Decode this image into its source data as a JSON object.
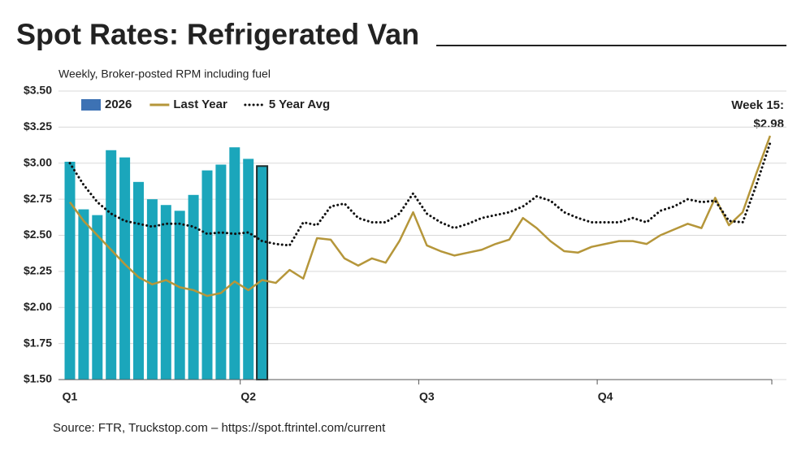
{
  "chart_data": {
    "type": "bar",
    "title": "Spot Rates: Refrigerated Van",
    "subtitle": "Weekly, Broker-posted RPM including fuel",
    "source": "Source: FTR, Truckstop.com – https://spot.ftrintel.com/current",
    "annotation": [
      "Week 15:",
      "$2.98"
    ],
    "categories": [
      "Q1",
      null,
      null,
      null,
      null,
      null,
      null,
      null,
      null,
      null,
      null,
      null,
      null,
      "Q2",
      null,
      null,
      null,
      null,
      null,
      null,
      null,
      null,
      null,
      null,
      null,
      null,
      "Q3",
      null,
      null,
      null,
      null,
      null,
      null,
      null,
      null,
      null,
      null,
      null,
      null,
      "Q4",
      null,
      null,
      null,
      null,
      null,
      null,
      null,
      null,
      null,
      null,
      null,
      null
    ],
    "series": [
      {
        "name": "2026",
        "type": "bar",
        "color": "#1ba6bb",
        "legend_color": "#3d72b4",
        "values": [
          3.01,
          2.68,
          2.64,
          3.09,
          3.04,
          2.87,
          2.75,
          2.71,
          2.67,
          2.78,
          2.95,
          2.99,
          3.11,
          3.03,
          2.98,
          null,
          null,
          null,
          null,
          null,
          null,
          null,
          null,
          null,
          null,
          null,
          null,
          null,
          null,
          null,
          null,
          null,
          null,
          null,
          null,
          null,
          null,
          null,
          null,
          null,
          null,
          null,
          null,
          null,
          null,
          null,
          null,
          null,
          null,
          null,
          null,
          null
        ]
      },
      {
        "name": "Last Year",
        "type": "line",
        "color": "#b5963a",
        "values": [
          2.73,
          2.6,
          2.5,
          2.4,
          2.3,
          2.21,
          2.16,
          2.19,
          2.14,
          2.12,
          2.08,
          2.1,
          2.18,
          2.12,
          2.19,
          2.17,
          2.26,
          2.2,
          2.48,
          2.47,
          2.34,
          2.29,
          2.34,
          2.31,
          2.46,
          2.66,
          2.43,
          2.39,
          2.36,
          2.38,
          2.4,
          2.44,
          2.47,
          2.62,
          2.55,
          2.46,
          2.39,
          2.38,
          2.42,
          2.44,
          2.46,
          2.46,
          2.44,
          2.5,
          2.54,
          2.58,
          2.55,
          2.76,
          2.57,
          2.66,
          2.93,
          3.19
        ]
      },
      {
        "name": "5 Year Avg",
        "type": "dotted",
        "color": "#111111",
        "values": [
          3.0,
          2.85,
          2.73,
          2.65,
          2.6,
          2.58,
          2.56,
          2.58,
          2.58,
          2.56,
          2.51,
          2.52,
          2.51,
          2.52,
          2.46,
          2.44,
          2.43,
          2.59,
          2.57,
          2.7,
          2.72,
          2.62,
          2.59,
          2.59,
          2.65,
          2.79,
          2.65,
          2.59,
          2.55,
          2.58,
          2.62,
          2.64,
          2.66,
          2.7,
          2.77,
          2.74,
          2.66,
          2.62,
          2.59,
          2.59,
          2.59,
          2.62,
          2.59,
          2.67,
          2.7,
          2.75,
          2.73,
          2.74,
          2.6,
          2.59,
          2.85,
          3.14
        ]
      }
    ],
    "ylim": [
      1.5,
      3.5
    ],
    "yticks": [
      {
        "value": 1.5,
        "label": "$1.50"
      },
      {
        "value": 1.75,
        "label": "$1.75"
      },
      {
        "value": 2.0,
        "label": "$2.00"
      },
      {
        "value": 2.25,
        "label": "$2.25"
      },
      {
        "value": 2.5,
        "label": "$2.50"
      },
      {
        "value": 2.75,
        "label": "$2.75"
      },
      {
        "value": 3.0,
        "label": "$3.00"
      },
      {
        "value": 3.25,
        "label": "$3.25"
      },
      {
        "value": 3.5,
        "label": "$3.50"
      }
    ],
    "grid": true,
    "legend": "top-left"
  }
}
